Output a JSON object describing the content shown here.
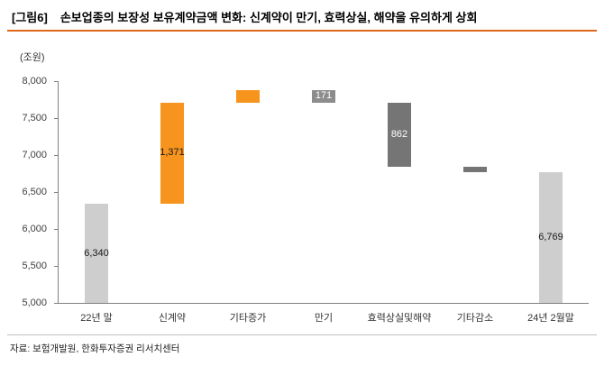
{
  "figure": {
    "fig_label": "[그림6]",
    "title": "손보업종의 보장성 보유계약금액 변화: 신계약이 만기, 효력상실, 해약을 유의하게 상회",
    "unit_label": "(조원)",
    "source": "자료: 보험개발원, 한화투자증권 리서치센터"
  },
  "colors": {
    "accent_rule": "#e0661c",
    "axis": "#808080",
    "base_bar": "#cecece",
    "increase_bar": "#f7941d",
    "decrease_bar": "#8c8c8c",
    "decrease_bar_dark": "#757575"
  },
  "chart_data": {
    "type": "bar",
    "subtype": "waterfall",
    "title": "손보업종의 보장성 보유계약금액 변화: 신계약이 만기, 효력상실, 해약을 유의하게 상회",
    "ylabel": "(조원)",
    "ylim": [
      5000,
      8000
    ],
    "grid": false,
    "legend": "none",
    "yticks": [
      {
        "value": 5000,
        "label": "5,000"
      },
      {
        "value": 5500,
        "label": "5,500"
      },
      {
        "value": 6000,
        "label": "6,000"
      },
      {
        "value": 6500,
        "label": "6,500"
      },
      {
        "value": 7000,
        "label": "7,000"
      },
      {
        "value": 7500,
        "label": "7,500"
      },
      {
        "value": 8000,
        "label": "8,000"
      }
    ],
    "categories": [
      "22년 말",
      "신계약",
      "기타증가",
      "만기",
      "효력상실및해약",
      "기타감소",
      "24년 2월말"
    ],
    "bars": [
      {
        "category": "22년 말",
        "low": 5000,
        "high": 6340,
        "value": 6340,
        "color": "#cecece",
        "label": "6,340",
        "label_color": "#1a1a1a"
      },
      {
        "category": "신계약",
        "low": 6340,
        "high": 7711,
        "value": 1371,
        "color": "#f7941d",
        "label": "1,371",
        "label_color": "#1a1a1a"
      },
      {
        "category": "기타증가",
        "low": 7711,
        "high": 7880,
        "value": 169,
        "color": "#f7941d",
        "label": "",
        "label_color": ""
      },
      {
        "category": "만기",
        "low": 7709,
        "high": 7880,
        "value": -171,
        "color": "#8c8c8c",
        "label": "171",
        "label_color": "#ffffff"
      },
      {
        "category": "효력상실및해약",
        "low": 6847,
        "high": 7709,
        "value": -862,
        "color": "#757575",
        "label": "862",
        "label_color": "#ffffff"
      },
      {
        "category": "기타감소",
        "low": 6769,
        "high": 6847,
        "value": -78,
        "color": "#757575",
        "label": "",
        "label_color": ""
      },
      {
        "category": "24년 2월말",
        "low": 5000,
        "high": 6769,
        "value": 6769,
        "color": "#cecece",
        "label": "6,769",
        "label_color": "#1a1a1a"
      }
    ]
  }
}
